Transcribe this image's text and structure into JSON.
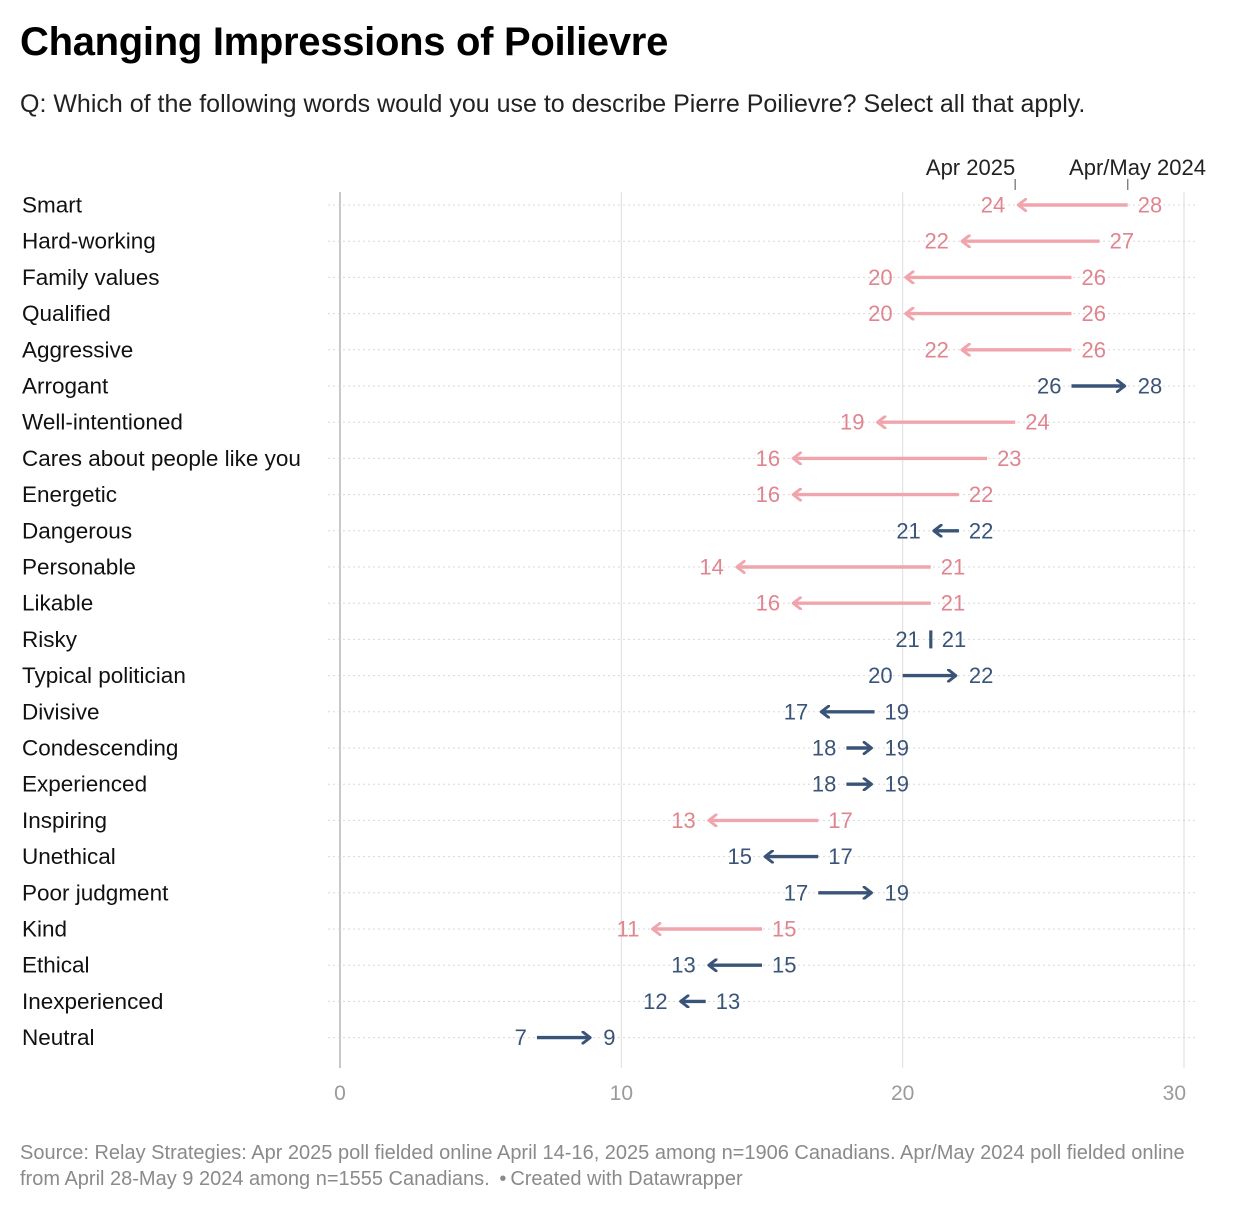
{
  "title": "Changing Impressions of Poilievre",
  "subtitle": "Q: Which of the following words would you use to describe Pierre Poilievre? Select all that apply.",
  "legend": {
    "current_label": "Apr 2025",
    "previous_label": "Apr/May 2024"
  },
  "colors": {
    "decrease": "#f0a5ad",
    "decrease_text": "#e0858f",
    "other": "#3a5478",
    "grid": "#e3e3e3",
    "axis_text": "#9a9a9a"
  },
  "chart_data": {
    "type": "arrow-dot",
    "xlim": [
      0,
      30
    ],
    "x_ticks": [
      0,
      10,
      20,
      30
    ],
    "categories": [
      "Smart",
      "Hard-working",
      "Family values",
      "Qualified",
      "Aggressive",
      "Arrogant",
      "Well-intentioned",
      "Cares about people like you",
      "Energetic",
      "Dangerous",
      "Personable",
      "Likable",
      "Risky",
      "Typical politician",
      "Divisive",
      "Condescending",
      "Experienced",
      "Inspiring",
      "Unethical",
      "Poor judgment",
      "Kind",
      "Ethical",
      "Inexperienced",
      "Neutral"
    ],
    "series": [
      {
        "name": "Apr/May 2024",
        "values": [
          28,
          27,
          26,
          26,
          26,
          26,
          24,
          23,
          22,
          22,
          21,
          21,
          21,
          20,
          19,
          18,
          18,
          17,
          17,
          17,
          15,
          15,
          13,
          7
        ]
      },
      {
        "name": "Apr 2025",
        "values": [
          24,
          22,
          20,
          20,
          22,
          28,
          19,
          16,
          16,
          21,
          14,
          16,
          21,
          22,
          17,
          19,
          19,
          13,
          15,
          19,
          11,
          13,
          12,
          9
        ]
      }
    ],
    "highlight": [
      "pink",
      "pink",
      "pink",
      "pink",
      "pink",
      "blue",
      "pink",
      "pink",
      "pink",
      "blue",
      "pink",
      "pink",
      "blue",
      "blue",
      "blue",
      "blue",
      "blue",
      "pink",
      "blue",
      "blue",
      "pink",
      "blue",
      "blue",
      "blue"
    ]
  },
  "source": {
    "text": "Source: Relay Strategies: Apr 2025 poll fielded online April 14-16, 2025 among n=1906 Canadians. Apr/May 2024 poll fielded online from April 28-May 9 2024 among n=1555 Canadians.",
    "separator": "•",
    "credit": "Created with Datawrapper"
  }
}
